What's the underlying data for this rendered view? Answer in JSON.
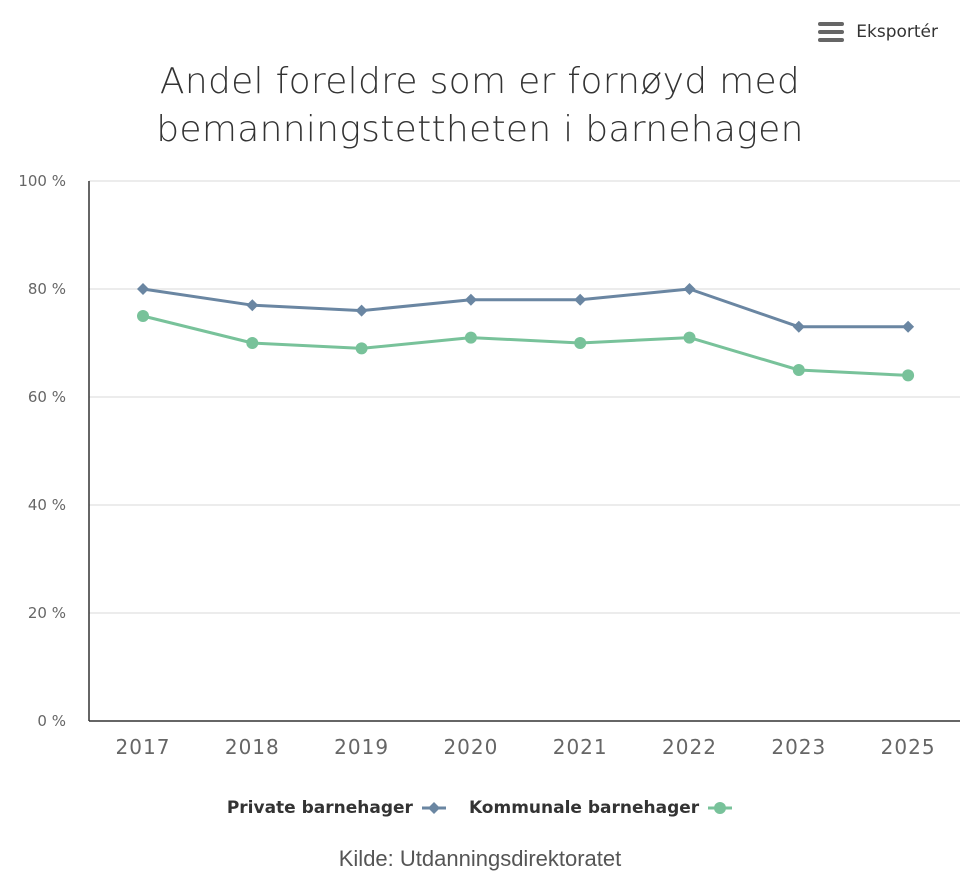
{
  "export": {
    "label": "Eksportér",
    "icon": "hamburger-menu-icon"
  },
  "colors": {
    "private": "#6a86a2",
    "kommunale": "#78c29a",
    "grid": "#e6e6e6",
    "axis": "#333333"
  },
  "chart_data": {
    "type": "line",
    "title": "Andel foreldre som er fornøyd med bemanningstettheten i barnehagen",
    "title_lines": [
      "Andel foreldre som er fornøyd med",
      "bemanningstettheten i barnehagen"
    ],
    "xlabel": "",
    "ylabel": "",
    "x": [
      "2017",
      "2018",
      "2019",
      "2020",
      "2021",
      "2022",
      "2023",
      "2025"
    ],
    "ylim": [
      0,
      100
    ],
    "yticks": [
      0,
      20,
      40,
      60,
      80,
      100
    ],
    "ytick_labels": [
      "0 %",
      "20 %",
      "40 %",
      "60 %",
      "80 %",
      "100 %"
    ],
    "grid": true,
    "legend_position": "bottom-center",
    "series": [
      {
        "name": "Private barnehager",
        "marker": "diamond",
        "color": "#6a86a2",
        "values": [
          80,
          77,
          76,
          78,
          78,
          80,
          73,
          73
        ]
      },
      {
        "name": "Kommunale barnehager",
        "marker": "circle",
        "color": "#78c29a",
        "values": [
          75,
          70,
          69,
          71,
          70,
          71,
          65,
          64
        ]
      }
    ],
    "source": "Kilde: Utdanningsdirektoratet"
  }
}
